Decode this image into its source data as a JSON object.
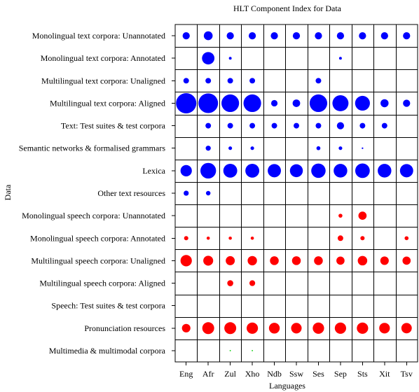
{
  "chart_data": {
    "type": "scatter",
    "subtype": "bubble-grid",
    "title": "HLT Component Index for Data",
    "xlabel": "Languages",
    "ylabel": "Data",
    "x_categories": [
      "Eng",
      "Afr",
      "Zul",
      "Xho",
      "Ndb",
      "Ssw",
      "Ses",
      "Sep",
      "Sts",
      "Xit",
      "Tsv"
    ],
    "y_categories": [
      "Monolingual text corpora: Unannotated",
      "Monolingual text corpora: Annotated",
      "Multilingual text corpora: Unaligned",
      "Multilingual text corpora: Aligned",
      "Text: Test suites & test corpora",
      "Semantic networks & formalised grammars",
      "Lexica",
      "Other text resources",
      "Monolingual speech corpora: Unannotated",
      "Monolingual speech corpora: Annotated",
      "Multilingual speech corpora: Unaligned",
      "Multilingual speech corpora: Aligned",
      "Speech: Test suites & test corpora",
      "Pronunciation resources",
      "Multimedia & multimodal corpora"
    ],
    "colors": {
      "text": "#0000ff",
      "speech": "#ff0000",
      "multimedia": "#00cc00"
    },
    "grid": true,
    "values": [
      [
        2,
        3,
        2,
        2,
        2,
        2,
        2,
        2,
        2,
        2,
        2
      ],
      [
        0,
        6,
        0.3,
        0,
        0,
        0,
        0,
        0.3,
        0,
        0,
        0
      ],
      [
        1.2,
        1.2,
        1.2,
        1.2,
        0,
        0,
        1.2,
        0,
        0,
        0,
        0
      ],
      [
        16,
        15,
        12,
        12,
        1.6,
        2.2,
        12,
        10,
        8.5,
        2.5,
        2
      ],
      [
        0,
        1.2,
        1.2,
        1.2,
        1.2,
        1.2,
        1.2,
        2,
        1.2,
        1.2,
        0
      ],
      [
        0,
        1,
        0.5,
        0.5,
        0,
        0,
        0.6,
        0.5,
        0.1,
        0,
        0
      ],
      [
        5,
        9.5,
        7.5,
        7.5,
        6.8,
        6.5,
        8,
        7.2,
        8.2,
        7.2,
        6.8
      ],
      [
        1,
        0.8,
        0,
        0,
        0,
        0,
        0,
        0,
        0,
        0,
        0
      ],
      [
        0,
        0,
        0,
        0,
        0,
        0,
        0,
        0.6,
        2.6,
        0,
        0
      ],
      [
        0.7,
        0.4,
        0.4,
        0.4,
        0,
        0,
        0,
        1.2,
        0.7,
        0,
        0.6
      ],
      [
        5,
        3.8,
        3.2,
        3.4,
        3,
        3,
        3,
        2.6,
        3.5,
        2.8,
        2.6
      ],
      [
        0,
        0,
        1.4,
        1.3,
        0,
        0,
        0,
        0,
        0,
        0,
        0
      ],
      [
        0,
        0,
        0,
        0,
        0,
        0,
        0,
        0,
        0,
        0,
        0
      ],
      [
        2.8,
        5.5,
        5.5,
        5,
        4.5,
        4.3,
        5,
        5,
        5,
        4.4,
        4.2
      ],
      [
        0,
        0,
        0.05,
        0.05,
        0,
        0,
        0,
        0,
        0,
        0,
        0
      ]
    ]
  }
}
